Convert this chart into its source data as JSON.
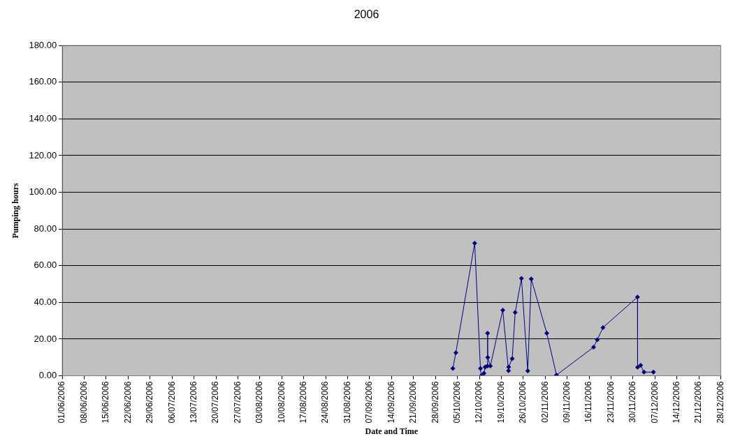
{
  "chart_data": {
    "type": "line",
    "title": "2006",
    "xlabel": "Date and Time",
    "ylabel": "Pumping hours",
    "x": [
      "2006-10-03T13:00",
      "2006-10-04T12:00",
      "2006-10-10T12:00",
      "2006-10-12T08:00",
      "2006-10-12T14:00",
      "2006-10-13T11:00",
      "2006-10-13T20:00",
      "2006-10-14T14:00",
      "2006-10-14T15:00",
      "2006-10-14T16:00",
      "2006-10-15T12:00",
      "2006-10-19T11:00",
      "2006-10-21T07:00",
      "2006-10-21T08:00",
      "2006-10-22T11:00",
      "2006-10-23T10:00",
      "2006-10-25T10:00",
      "2006-10-27T10:00",
      "2006-10-28T13:00",
      "2006-11-02T12:00",
      "2006-11-05T14:00",
      "2006-11-17T10:00",
      "2006-11-18T14:00",
      "2006-11-20T10:00",
      "2006-12-01T10:00",
      "2006-12-01T11:00",
      "2006-12-02T10:00",
      "2006-12-03T12:00",
      "2006-12-06T12:00"
    ],
    "series": [
      {
        "color": "#000080",
        "values": [
          4.0,
          12.6,
          72.3,
          4.0,
          0.0,
          1.3,
          4.8,
          5.3,
          23.2,
          10.0,
          5.3,
          35.8,
          2.8,
          4.8,
          9.3,
          34.5,
          53.1,
          2.7,
          52.8,
          23.2,
          0.4,
          15.6,
          19.6,
          26.3,
          42.9,
          4.7,
          5.7,
          2.0,
          2.0
        ]
      }
    ],
    "xlim": [
      "2006-06-01",
      "2006-12-28"
    ],
    "xticks": [
      {
        "value": "2006-06-01",
        "label": "01/06/2006"
      },
      {
        "value": "2006-06-08",
        "label": "08/06/2006"
      },
      {
        "value": "2006-06-15",
        "label": "15/06/2006"
      },
      {
        "value": "2006-06-22",
        "label": "22/06/2006"
      },
      {
        "value": "2006-06-29",
        "label": "29/06/2006"
      },
      {
        "value": "2006-07-06",
        "label": "06/07/2006"
      },
      {
        "value": "2006-07-13",
        "label": "13/07/2006"
      },
      {
        "value": "2006-07-20",
        "label": "20/07/2006"
      },
      {
        "value": "2006-07-27",
        "label": "27/07/2006"
      },
      {
        "value": "2006-08-03",
        "label": "03/08/2006"
      },
      {
        "value": "2006-08-10",
        "label": "10/08/2006"
      },
      {
        "value": "2006-08-17",
        "label": "17/08/2006"
      },
      {
        "value": "2006-08-24",
        "label": "24/08/2006"
      },
      {
        "value": "2006-08-31",
        "label": "31/08/2006"
      },
      {
        "value": "2006-09-07",
        "label": "07/09/2006"
      },
      {
        "value": "2006-09-14",
        "label": "14/09/2006"
      },
      {
        "value": "2006-09-21",
        "label": "21/09/2006"
      },
      {
        "value": "2006-09-28",
        "label": "28/09/2006"
      },
      {
        "value": "2006-10-05",
        "label": "05/10/2006"
      },
      {
        "value": "2006-10-12",
        "label": "12/10/2006"
      },
      {
        "value": "2006-10-19",
        "label": "19/10/2006"
      },
      {
        "value": "2006-10-26",
        "label": "26/10/2006"
      },
      {
        "value": "2006-11-02",
        "label": "02/11/2006"
      },
      {
        "value": "2006-11-09",
        "label": "09/11/2006"
      },
      {
        "value": "2006-11-16",
        "label": "16/11/2006"
      },
      {
        "value": "2006-11-23",
        "label": "23/11/2006"
      },
      {
        "value": "2006-11-30",
        "label": "30/11/2006"
      },
      {
        "value": "2006-12-07",
        "label": "07/12/2006"
      },
      {
        "value": "2006-12-14",
        "label": "14/12/2006"
      },
      {
        "value": "2006-12-21",
        "label": "21/12/2006"
      },
      {
        "value": "2006-12-28",
        "label": "28/12/2006"
      }
    ],
    "ylim": [
      0,
      180
    ],
    "yticks": [
      {
        "value": 0,
        "label": "0.00"
      },
      {
        "value": 20,
        "label": "20.00"
      },
      {
        "value": 40,
        "label": "40.00"
      },
      {
        "value": 60,
        "label": "60.00"
      },
      {
        "value": 80,
        "label": "80.00"
      },
      {
        "value": 100,
        "label": "100.00"
      },
      {
        "value": 120,
        "label": "120.00"
      },
      {
        "value": 140,
        "label": "140.00"
      },
      {
        "value": 160,
        "label": "160.00"
      },
      {
        "value": 180,
        "label": "180.00"
      }
    ],
    "grid": "y",
    "legend": false,
    "marker": "diamond",
    "line_style": "solid"
  }
}
